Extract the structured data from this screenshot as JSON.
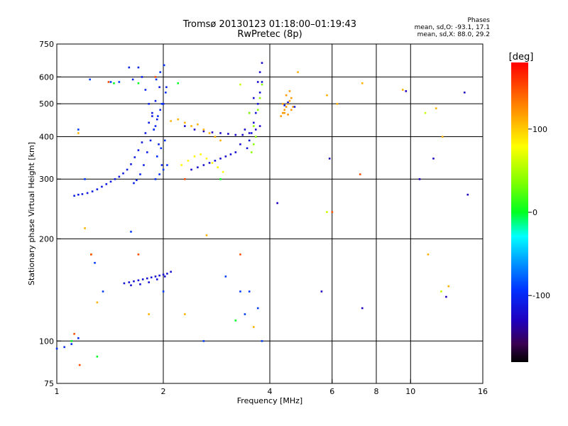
{
  "header": {
    "title_line1": "Tromsø 20130123 01:18:00–01:19:43",
    "title_line2": "RwPretec (8p)",
    "info_title": "Phases",
    "info_line1": "mean, sd,O:  -93.1, 17.1",
    "info_line2": "mean, sd,X:  88.0, 29.2"
  },
  "colorbar": {
    "label": "[deg]",
    "range": [
      -180,
      180
    ],
    "tick_values": [
      100,
      0,
      -100
    ],
    "tick_labels": [
      "100",
      "0",
      "-100"
    ]
  },
  "chart_data": {
    "type": "scatter",
    "title": "Tromsø 20130123 01:18:00–01:19:43",
    "subtitle": "RwPretec (8p)",
    "xlabel": "Frequency [MHz]",
    "ylabel": "Stationary phase Virtual Height [km]",
    "xscale": "log",
    "yscale": "log",
    "xlim": [
      1,
      16
    ],
    "ylim": [
      75,
      750
    ],
    "xticks": [
      1,
      2,
      4,
      6,
      8,
      10,
      16
    ],
    "xtick_labels": [
      "1",
      "2",
      "4",
      "6",
      "8",
      "10",
      "16"
    ],
    "yticks": [
      75,
      100,
      200,
      300,
      400,
      500,
      600,
      750
    ],
    "ytick_labels": [
      "75",
      "100",
      "200",
      "300",
      "400",
      "500",
      "600",
      "750"
    ],
    "x_gridlines": [
      2,
      4,
      6,
      8,
      10
    ],
    "y_gridlines": [
      100,
      200,
      300,
      400,
      500,
      600
    ],
    "grid": true,
    "color_value": "phase [deg]",
    "series": [
      {
        "x": [
          1.12,
          1.15,
          1.18,
          1.22,
          1.26,
          1.3,
          1.34,
          1.38,
          1.42,
          1.46,
          1.5,
          1.54,
          1.58,
          1.62,
          1.66,
          1.7,
          1.74,
          1.78,
          1.82,
          1.86,
          1.9,
          1.95
        ],
        "y": [
          268,
          270,
          271,
          273,
          276,
          280,
          285,
          290,
          295,
          300,
          305,
          312,
          320,
          332,
          348,
          365,
          385,
          410,
          440,
          470,
          510,
          560
        ],
        "phase": -110
      },
      {
        "x": [
          1.65,
          1.68,
          1.72,
          1.76,
          1.8,
          1.84,
          1.88,
          1.92,
          1.96,
          2.0,
          2.04,
          1.7,
          1.74,
          1.78,
          1.82,
          1.86,
          1.9,
          1.94,
          1.98,
          1.6,
          1.64
        ],
        "y": [
          292,
          298,
          310,
          330,
          360,
          390,
          420,
          450,
          480,
          500,
          560,
          640,
          600,
          550,
          500,
          460,
          430,
          380,
          330,
          640,
          590
        ],
        "phase": -105
      },
      {
        "x": [
          1.9,
          1.95,
          2.0,
          2.05,
          1.92,
          1.97,
          2.02,
          1.88,
          1.93,
          1.98,
          2.03,
          1.91,
          1.96,
          2.01
        ],
        "y": [
          300,
          310,
          320,
          330,
          350,
          370,
          390,
          420,
          460,
          500,
          540,
          590,
          620,
          650
        ],
        "phase": -95
      },
      {
        "x": [
          2.4,
          2.5,
          2.6,
          2.7,
          2.8,
          2.9,
          3.0,
          3.1,
          3.2,
          3.3,
          3.4,
          3.5,
          3.6,
          3.7,
          3.75,
          3.8
        ],
        "y": [
          320,
          325,
          330,
          335,
          340,
          345,
          350,
          355,
          360,
          380,
          420,
          470,
          520,
          580,
          620,
          660
        ],
        "phase": -120
      },
      {
        "x": [
          2.3,
          2.45,
          2.6,
          2.75,
          2.9,
          3.05,
          3.2,
          3.35,
          3.5,
          3.65,
          3.75
        ],
        "y": [
          430,
          420,
          415,
          412,
          410,
          408,
          405,
          405,
          410,
          420,
          430
        ],
        "phase": -125
      },
      {
        "x": [
          3.45,
          3.5,
          3.55,
          3.6,
          3.65,
          3.7,
          3.75,
          3.8
        ],
        "y": [
          370,
          390,
          410,
          440,
          470,
          500,
          540,
          580
        ],
        "phase": -115
      },
      {
        "x": [
          1.55,
          1.6,
          1.65,
          1.7,
          1.75,
          1.8,
          1.85,
          1.9,
          1.95,
          2.0,
          2.05,
          2.1,
          1.62,
          1.72,
          1.82,
          1.92,
          2.02
        ],
        "y": [
          148,
          149,
          150,
          151,
          152,
          153,
          154,
          155,
          156,
          157,
          158,
          160,
          146,
          147,
          149,
          152,
          155
        ],
        "phase": -118
      },
      {
        "x": [
          2.1,
          2.2,
          2.3,
          2.4,
          2.5,
          2.6,
          2.7,
          2.8,
          2.9
        ],
        "y": [
          445,
          450,
          440,
          430,
          435,
          420,
          410,
          400,
          390
        ],
        "phase": 110
      },
      {
        "x": [
          2.25,
          2.35,
          2.45,
          2.55,
          2.65,
          2.75,
          2.85,
          2.95
        ],
        "y": [
          330,
          340,
          350,
          355,
          345,
          335,
          325,
          315
        ],
        "phase": 80
      },
      {
        "x": [
          3.55,
          3.6,
          3.65,
          3.7,
          3.75,
          3.8,
          3.5,
          3.6
        ],
        "y": [
          360,
          380,
          400,
          480,
          520,
          570,
          470,
          430
        ],
        "phase": 40
      },
      {
        "x": [
          4.3,
          4.35,
          4.4,
          4.45,
          4.5,
          4.55,
          4.6,
          4.65,
          4.4,
          4.5,
          4.6,
          4.35,
          4.45,
          4.55
        ],
        "y": [
          460,
          470,
          480,
          490,
          500,
          510,
          520,
          490,
          470,
          465,
          480,
          500,
          530,
          545
        ],
        "phase": 120
      },
      {
        "x": [
          4.4,
          4.5,
          4.7
        ],
        "y": [
          495,
          505,
          490
        ],
        "phase": -110
      },
      {
        "x": [
          1.0,
          1.05,
          1.1,
          1.15
        ],
        "y": [
          95,
          96,
          98,
          102
        ],
        "phase": -100
      },
      {
        "x": [
          1.15,
          1.2,
          1.24,
          1.28,
          1.35,
          1.42,
          1.5,
          1.62,
          2.0,
          2.6,
          3.0,
          3.3,
          3.4,
          3.5,
          3.7,
          3.8
        ],
        "y": [
          420,
          300,
          590,
          170,
          140,
          580,
          580,
          210,
          140,
          100,
          155,
          140,
          120,
          140,
          125,
          100
        ],
        "phase": -90
      },
      {
        "x": [
          1.15,
          1.2,
          1.25,
          1.3,
          1.82,
          2.3,
          2.65,
          3.6,
          4.8,
          5.8,
          6.2,
          7.3,
          9.5,
          11.2,
          11.8,
          12.3,
          12.8
        ],
        "y": [
          410,
          215,
          180,
          130,
          120,
          120,
          205,
          110,
          620,
          530,
          500,
          575,
          550,
          180,
          485,
          400,
          145
        ],
        "phase": 110
      },
      {
        "x": [
          1.12,
          1.16,
          1.25,
          1.4,
          1.7,
          1.9,
          2.3,
          3.3,
          6.0,
          7.2
        ],
        "y": [
          105,
          85,
          180,
          580,
          180,
          600,
          300,
          180,
          240,
          310
        ],
        "phase": 150
      },
      {
        "x": [
          1.1,
          1.3,
          1.45,
          1.7,
          2.2,
          2.9,
          3.2
        ],
        "y": [
          100,
          90,
          575,
          575,
          575,
          300,
          115
        ],
        "phase": 0
      },
      {
        "x": [
          4.2,
          5.6,
          5.9,
          7.3,
          9.7,
          10.6,
          11.6,
          12.6,
          14.2,
          14.5
        ],
        "y": [
          255,
          140,
          345,
          125,
          545,
          300,
          345,
          135,
          540,
          270
        ],
        "phase": -130
      },
      {
        "x": [
          3.3,
          5.8,
          11.0,
          12.2
        ],
        "y": [
          570,
          240,
          470,
          140
        ],
        "phase": 60
      }
    ]
  }
}
